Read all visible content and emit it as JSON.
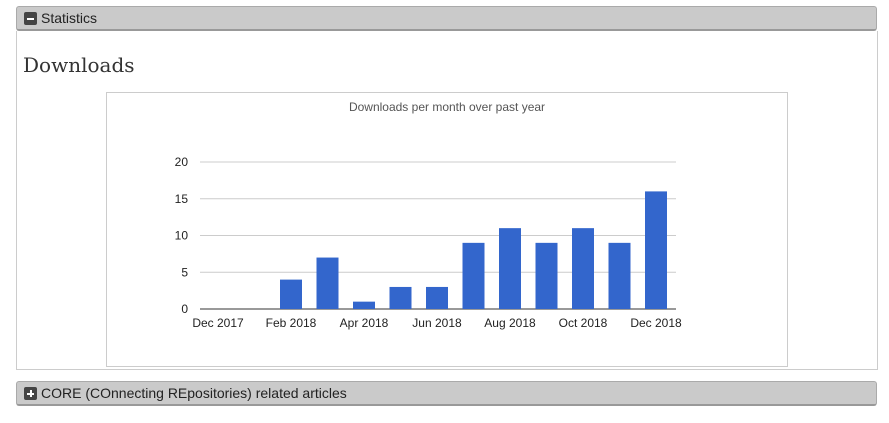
{
  "statistics_panel": {
    "label": "Statistics",
    "icon": "minus-icon"
  },
  "section_title": "Downloads",
  "core_panel": {
    "label": "CORE (COnnecting REpositories) related articles",
    "icon": "plus-icon"
  },
  "chart_data": {
    "type": "bar",
    "title": "Downloads per month over past year",
    "categories": [
      "Dec 2017",
      "Jan 2018",
      "Feb 2018",
      "Mar 2018",
      "Apr 2018",
      "May 2018",
      "Jun 2018",
      "Jul 2018",
      "Aug 2018",
      "Sep 2018",
      "Oct 2018",
      "Nov 2018",
      "Dec 2018"
    ],
    "tick_labels": [
      "Dec 2017",
      "Feb 2018",
      "Apr 2018",
      "Jun 2018",
      "Aug 2018",
      "Oct 2018",
      "Dec 2018"
    ],
    "values": [
      0,
      0,
      4,
      7,
      1,
      3,
      3,
      9,
      11,
      9,
      11,
      9,
      16
    ],
    "yticks": [
      0,
      5,
      10,
      15,
      20
    ],
    "ylim": [
      0,
      20
    ],
    "xlabel": "",
    "ylabel": "",
    "grid": true,
    "color": "#3366cc"
  }
}
